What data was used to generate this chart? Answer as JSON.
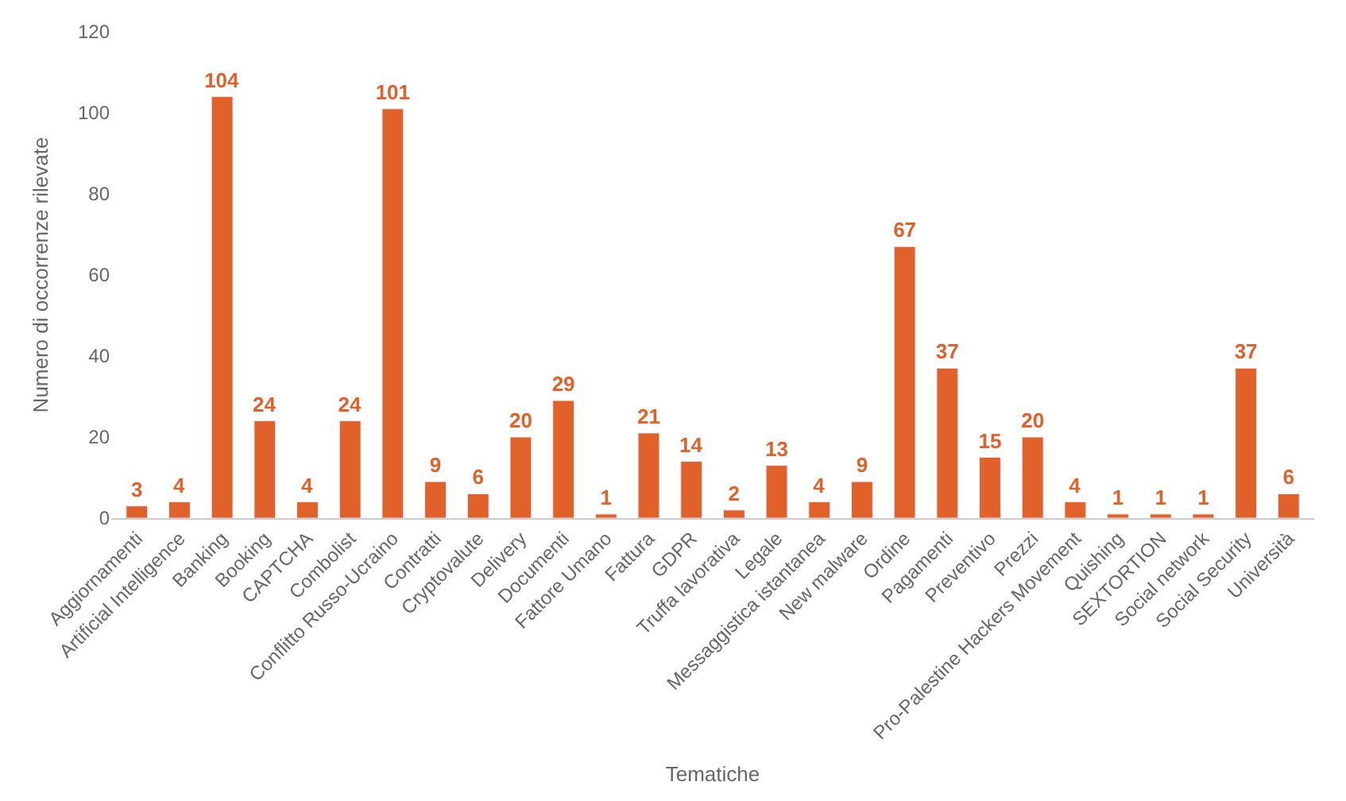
{
  "chart_data": {
    "type": "bar",
    "xlabel": "Tematiche",
    "ylabel": "Numero di occorrenze rilevate",
    "categories": [
      "Aggiornamenti",
      "Artificial Intelligence",
      "Banking",
      "Booking",
      "CAPTCHA",
      "Combolist",
      "Conflitto Russo-Ucraino",
      "Contratti",
      "Cryptovalute",
      "Delivery",
      "Documenti",
      "Fattore Umano",
      "Fattura",
      "GDPR",
      "Truffa lavorativa",
      "Legale",
      "Messaggistica istantanea",
      "New malware",
      "Ordine",
      "Pagamenti",
      "Preventivo",
      "Prezzi",
      "Pro-Palestine Hackers Movement",
      "Quishing",
      "SEXTORTION",
      "Social network",
      "Social Security",
      "Università"
    ],
    "values": [
      3,
      4,
      104,
      24,
      4,
      24,
      101,
      9,
      6,
      20,
      29,
      1,
      21,
      14,
      2,
      13,
      4,
      9,
      67,
      37,
      15,
      20,
      4,
      1,
      1,
      1,
      37,
      6
    ],
    "color": "#e0622a",
    "data_labels": true,
    "ylim": [
      0,
      120
    ],
    "yticks": [
      0,
      20,
      40,
      60,
      80,
      100,
      120
    ]
  }
}
